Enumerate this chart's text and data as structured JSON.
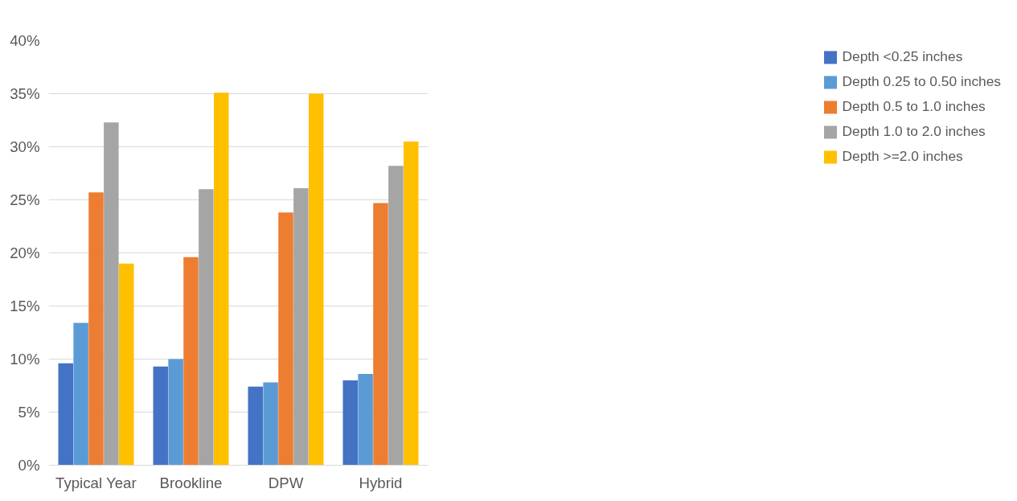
{
  "chart_data": {
    "type": "bar",
    "categories": [
      "Typical Year",
      "Brookline",
      "DPW",
      "Hybrid"
    ],
    "series": [
      {
        "name": "Depth <0.25 inches",
        "color": "#4472c4",
        "values": [
          9.6,
          9.3,
          7.4,
          8.0
        ]
      },
      {
        "name": "Depth 0.25 to 0.50 inches",
        "color": "#5b9bd5",
        "values": [
          13.4,
          10.0,
          7.8,
          8.6
        ]
      },
      {
        "name": "Depth 0.5 to 1.0 inches",
        "color": "#ed7d31",
        "values": [
          25.7,
          19.6,
          23.8,
          24.7
        ]
      },
      {
        "name": "Depth 1.0 to 2.0 inches",
        "color": "#a5a5a5",
        "values": [
          32.3,
          26.0,
          26.1,
          28.2
        ]
      },
      {
        "name": "Depth >=2.0 inches",
        "color": "#ffc000",
        "values": [
          19.0,
          35.1,
          35.0,
          30.5
        ]
      }
    ],
    "ylim": [
      0,
      40
    ],
    "yticks": [
      {
        "value": 0,
        "label": "0%"
      },
      {
        "value": 5,
        "label": "5%"
      },
      {
        "value": 10,
        "label": "10%"
      },
      {
        "value": 15,
        "label": "15%"
      },
      {
        "value": 20,
        "label": "20%"
      },
      {
        "value": 25,
        "label": "25%"
      },
      {
        "value": 30,
        "label": "30%"
      },
      {
        "value": 35,
        "label": "35%"
      },
      {
        "value": 40,
        "label": "40%"
      }
    ],
    "grid": "y",
    "legend": "right"
  }
}
